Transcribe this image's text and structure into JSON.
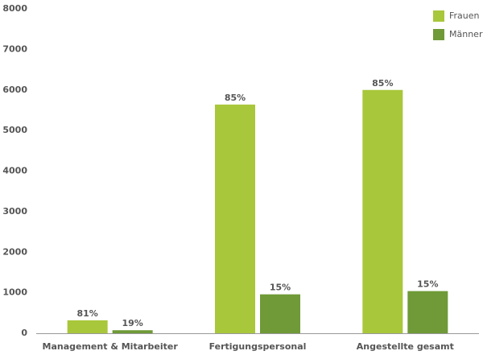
{
  "chart_data": {
    "type": "bar",
    "categories": [
      "Management & Mitarbeiter",
      "Fertigungspersonal",
      "Angestellte gesamt"
    ],
    "series": [
      {
        "name": "Frauen",
        "color": "#a8c73a",
        "values": [
          320,
          5640,
          6000
        ],
        "value_labels": [
          "81%",
          "85%",
          "85%"
        ]
      },
      {
        "name": "Männer",
        "color": "#6f9a37",
        "values": [
          75,
          960,
          1040
        ],
        "value_labels": [
          "19%",
          "15%",
          "15%"
        ]
      }
    ],
    "ylim": [
      0,
      8000
    ],
    "yticks": [
      0,
      1000,
      2000,
      3000,
      4000,
      5000,
      6000,
      7000,
      8000
    ],
    "grid": false,
    "legend": "top-right"
  }
}
